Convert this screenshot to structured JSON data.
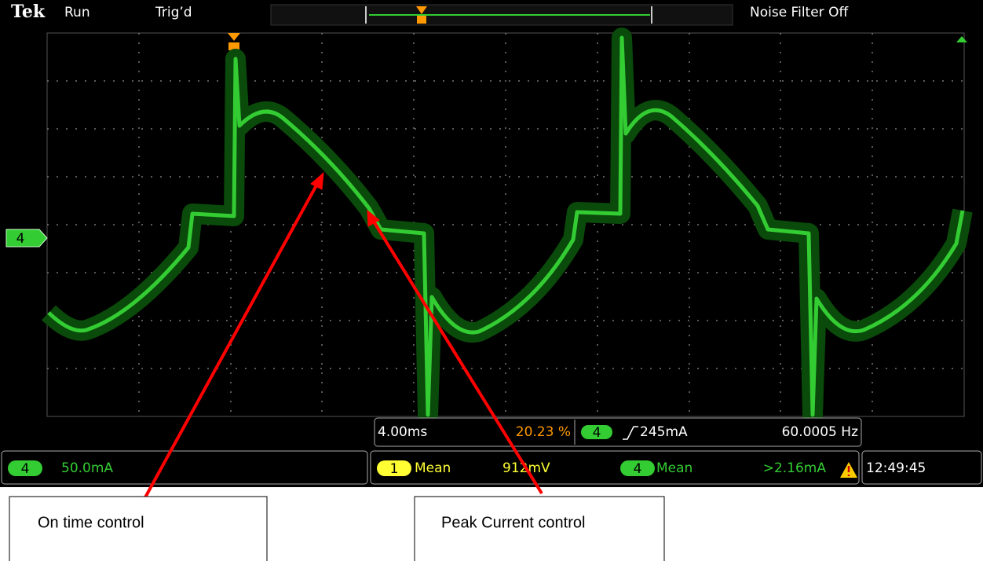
{
  "header": {
    "brand": "Tek",
    "run_state": "Run",
    "trigger_state": "Trig’d",
    "noise_filter": "Noise Filter Off"
  },
  "channel_marker": "4",
  "measurements": {
    "timebase": "4.00ms",
    "trigger_position": "20.23 %",
    "trigger_channel": "4",
    "trigger_level": "245mA",
    "frequency": "60.0005 Hz"
  },
  "status": {
    "channel": "4",
    "scale": "50.0mA",
    "meas1_channel": "1",
    "meas1_label": "Mean",
    "meas1_value": "912mV",
    "meas2_channel": "4",
    "meas2_label": "Mean",
    "meas2_value": ">2.16mA",
    "time": "12:49:45"
  },
  "annotations": [
    "On time control",
    "Peak Current control"
  ]
}
